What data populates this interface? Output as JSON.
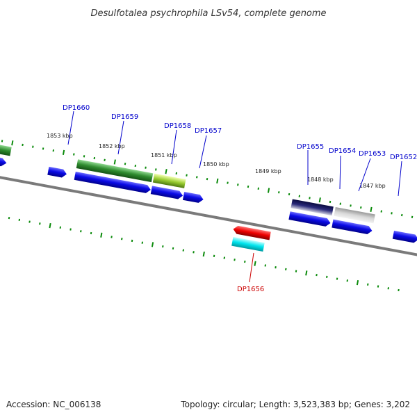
{
  "title": "Desulfotalea psychrophila LSv54, complete genome",
  "footer": {
    "accession": "Accession: NC_006138",
    "summary": "Topology: circular; Length: 3,523,383 bp; Genes: 3,202"
  },
  "kbp_labels": [
    "1853 kbp",
    "1852 kbp",
    "1851 kbp",
    "1850 kbp",
    "1849 kbp",
    "1848 kbp",
    "1847 kbp"
  ],
  "genes": [
    {
      "id": "DP1660",
      "color": "#0000cc"
    },
    {
      "id": "DP1659",
      "color": "#0000cc"
    },
    {
      "id": "DP1658",
      "color": "#0000cc"
    },
    {
      "id": "DP1657",
      "color": "#0000cc"
    },
    {
      "id": "DP1656",
      "color": "#cc0000"
    },
    {
      "id": "DP1655",
      "color": "#0000cc"
    },
    {
      "id": "DP1654",
      "color": "#0000cc"
    },
    {
      "id": "DP1653",
      "color": "#0000cc"
    },
    {
      "id": "DP1652",
      "color": "#0000cc"
    }
  ],
  "colors": {
    "cds_forward": "#0b0be0",
    "cds_reverse": "#ee0000",
    "feature_green": "#2e8b2e",
    "feature_yellow_green": "#b5d84a",
    "feature_navy": "#14144f",
    "feature_grey": "#bdbdbd",
    "feature_cyan": "#00e5ee",
    "backbone": "#777777",
    "ticks": "#0a8a0a"
  }
}
